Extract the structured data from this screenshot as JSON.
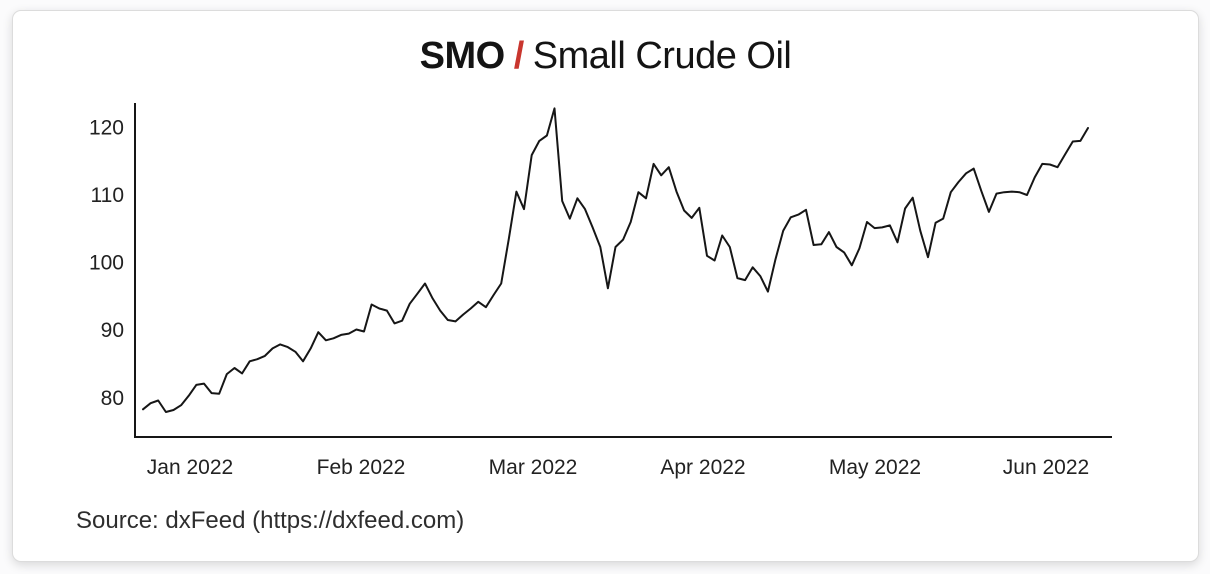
{
  "title": {
    "symbol": "SMO",
    "separator": "/",
    "name": "Small Crude Oil"
  },
  "source": {
    "label": "Source: dxFeed (https://dxfeed.com)"
  },
  "colors": {
    "accent_red": "#c9362e",
    "line": "#161616",
    "axis": "#161616",
    "tick_text": "#222222"
  },
  "chart_data": {
    "type": "line",
    "title": "SMO / Small Crude Oil",
    "xlabel": "",
    "ylabel": "",
    "grid": false,
    "legend": false,
    "x_tick_labels": [
      "Jan 2022",
      "Feb 2022",
      "Mar 2022",
      "Apr 2022",
      "May 2022",
      "Jun 2022"
    ],
    "y_ticks": [
      80,
      90,
      100,
      110,
      120
    ],
    "ylim": [
      74.2,
      123.6
    ],
    "series": [
      {
        "name": "SMO",
        "values": [
          78.3,
          79.2,
          79.6,
          77.9,
          78.2,
          78.9,
          80.3,
          81.9,
          82.1,
          80.7,
          80.6,
          83.5,
          84.4,
          83.6,
          85.4,
          85.7,
          86.2,
          87.3,
          87.9,
          87.5,
          86.8,
          85.4,
          87.3,
          89.7,
          88.5,
          88.8,
          89.3,
          89.5,
          90.1,
          89.8,
          93.8,
          93.2,
          92.9,
          91.0,
          91.4,
          93.9,
          95.4,
          96.9,
          94.7,
          92.9,
          91.5,
          91.3,
          92.3,
          93.2,
          94.2,
          93.4,
          95.2,
          96.9,
          103.5,
          110.5,
          107.9,
          115.9,
          118.0,
          118.8,
          122.8,
          109.1,
          106.5,
          109.5,
          107.9,
          105.2,
          102.3,
          96.2,
          102.3,
          103.4,
          106.0,
          110.4,
          109.5,
          114.6,
          112.9,
          114.1,
          110.5,
          107.7,
          106.6,
          108.1,
          101.0,
          100.3,
          104.0,
          102.3,
          97.7,
          97.4,
          99.3,
          98.0,
          95.7,
          100.5,
          104.7,
          106.7,
          107.1,
          107.8,
          102.6,
          102.7,
          104.5,
          102.3,
          101.5,
          99.6,
          102.1,
          106.0,
          105.1,
          105.2,
          105.5,
          103.0,
          108.0,
          109.6,
          104.7,
          100.8,
          105.9,
          106.5,
          110.4,
          111.9,
          113.2,
          113.9,
          110.6,
          107.5,
          110.2,
          110.4,
          110.5,
          110.4,
          110.0,
          112.6,
          114.6,
          114.5,
          114.1,
          116.0,
          117.9,
          118.0,
          119.9
        ]
      }
    ]
  }
}
